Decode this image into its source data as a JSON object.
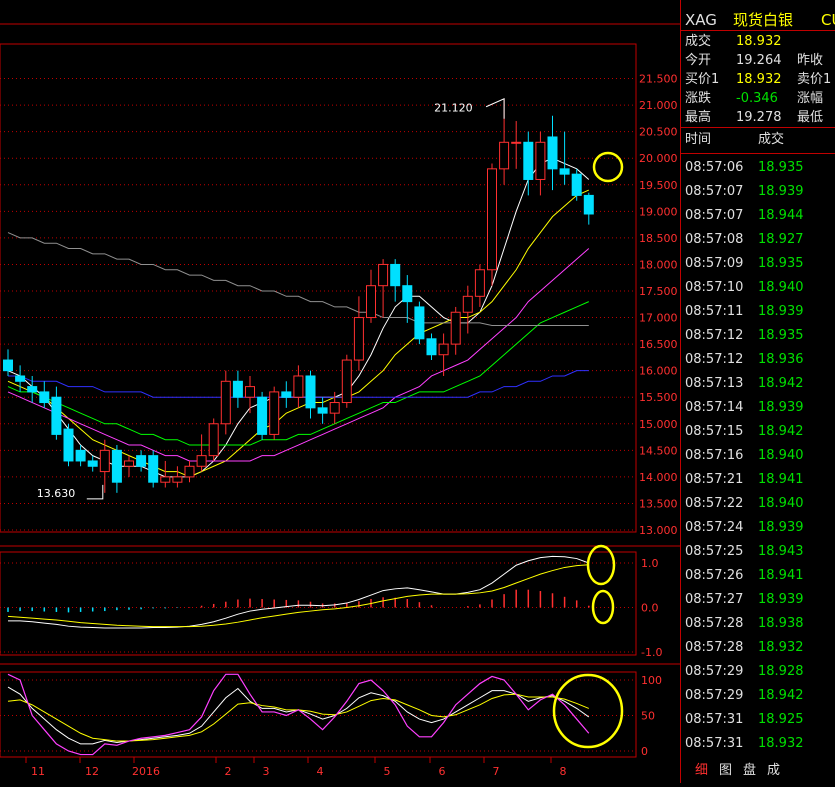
{
  "quote": {
    "symbol": "XAG",
    "name": "现货白银",
    "code_fragment": "CU",
    "rows": [
      {
        "label": "成交",
        "value": "18.932",
        "label2": "",
        "value2": ""
      },
      {
        "label": "今开",
        "value": "19.264",
        "label2": "昨收",
        "value2": ""
      },
      {
        "label": "买价1",
        "value": "18.932",
        "label2": "卖价1",
        "value2": ""
      },
      {
        "label": "涨跌",
        "value": "-0.346",
        "label2": "涨幅",
        "value2": ""
      },
      {
        "label": "最高",
        "value": "19.278",
        "label2": "最低",
        "value2": ""
      }
    ],
    "ticks_header": {
      "time": "时间",
      "price": "成交"
    },
    "ticks": [
      {
        "time": "08:57:06",
        "price": "18.935"
      },
      {
        "time": "08:57:07",
        "price": "18.939"
      },
      {
        "time": "08:57:07",
        "price": "18.944"
      },
      {
        "time": "08:57:08",
        "price": "18.927"
      },
      {
        "time": "08:57:09",
        "price": "18.935"
      },
      {
        "time": "08:57:10",
        "price": "18.940"
      },
      {
        "time": "08:57:11",
        "price": "18.939"
      },
      {
        "time": "08:57:12",
        "price": "18.935"
      },
      {
        "time": "08:57:12",
        "price": "18.936"
      },
      {
        "time": "08:57:13",
        "price": "18.942"
      },
      {
        "time": "08:57:14",
        "price": "18.939"
      },
      {
        "time": "08:57:15",
        "price": "18.942"
      },
      {
        "time": "08:57:16",
        "price": "18.940"
      },
      {
        "time": "08:57:21",
        "price": "18.941"
      },
      {
        "time": "08:57:22",
        "price": "18.940"
      },
      {
        "time": "08:57:24",
        "price": "18.939"
      },
      {
        "time": "08:57:25",
        "price": "18.943"
      },
      {
        "time": "08:57:26",
        "price": "18.941"
      },
      {
        "time": "08:57:27",
        "price": "18.939"
      },
      {
        "time": "08:57:28",
        "price": "18.938"
      },
      {
        "time": "08:57:28",
        "price": "18.932"
      },
      {
        "time": "08:57:29",
        "price": "18.928"
      },
      {
        "time": "08:57:29",
        "price": "18.942"
      },
      {
        "time": "08:57:31",
        "price": "18.925"
      },
      {
        "time": "08:57:31",
        "price": "18.932"
      }
    ],
    "tabs": [
      "细",
      "图",
      "盘",
      "成"
    ]
  },
  "colors": {
    "up": "#ff3030",
    "down": "#00e0ff",
    "ma5": "#ffffff",
    "ma10": "#ffff00",
    "ma20": "#ff40ff",
    "ma30": "#00ff00",
    "ma60": "#3030ff",
    "ma120": "#909090",
    "grid": "#c00000",
    "axis_text": "#ff3030",
    "annotation": "#ffff00"
  },
  "chart_data": [
    {
      "type": "candlestick",
      "ylim": [
        13.0,
        22.0
      ],
      "yticks": [
        "21.500",
        "21.000",
        "20.500",
        "20.000",
        "19.500",
        "19.000",
        "18.500",
        "18.000",
        "17.500",
        "17.000",
        "16.500",
        "16.000",
        "15.500",
        "15.000",
        "14.500",
        "14.000",
        "13.500",
        "13.000"
      ],
      "x_labels": [
        "11",
        "12",
        "2016",
        "2",
        "3",
        "4",
        "5",
        "6",
        "7",
        "8"
      ],
      "annotations": [
        "21.120",
        "13.630"
      ],
      "candles": [
        {
          "o": 16.2,
          "c": 16.0,
          "h": 16.4,
          "l": 15.9
        },
        {
          "o": 15.9,
          "c": 15.8,
          "h": 16.1,
          "l": 15.6
        },
        {
          "o": 15.7,
          "c": 15.6,
          "h": 15.9,
          "l": 15.4
        },
        {
          "o": 15.6,
          "c": 15.4,
          "h": 15.8,
          "l": 15.3
        },
        {
          "o": 15.5,
          "c": 14.8,
          "h": 15.7,
          "l": 14.7
        },
        {
          "o": 14.9,
          "c": 14.3,
          "h": 15.0,
          "l": 14.2
        },
        {
          "o": 14.5,
          "c": 14.3,
          "h": 14.6,
          "l": 14.2
        },
        {
          "o": 14.3,
          "c": 14.2,
          "h": 14.4,
          "l": 14.1
        },
        {
          "o": 14.1,
          "c": 14.5,
          "h": 14.7,
          "l": 13.7
        },
        {
          "o": 14.5,
          "c": 13.9,
          "h": 14.6,
          "l": 13.7
        },
        {
          "o": 14.2,
          "c": 14.3,
          "h": 14.4,
          "l": 14.0
        },
        {
          "o": 14.4,
          "c": 14.2,
          "h": 14.5,
          "l": 14.1
        },
        {
          "o": 14.4,
          "c": 13.9,
          "h": 14.5,
          "l": 13.8
        },
        {
          "o": 13.9,
          "c": 14.0,
          "h": 14.3,
          "l": 13.8
        },
        {
          "o": 13.9,
          "c": 14.0,
          "h": 14.2,
          "l": 13.8
        },
        {
          "o": 14.0,
          "c": 14.2,
          "h": 14.3,
          "l": 13.9
        },
        {
          "o": 14.2,
          "c": 14.4,
          "h": 14.8,
          "l": 14.1
        },
        {
          "o": 14.4,
          "c": 15.0,
          "h": 15.1,
          "l": 14.3
        },
        {
          "o": 15.0,
          "c": 15.8,
          "h": 16.0,
          "l": 14.8
        },
        {
          "o": 15.8,
          "c": 15.5,
          "h": 16.0,
          "l": 15.3
        },
        {
          "o": 15.5,
          "c": 15.7,
          "h": 15.9,
          "l": 15.2
        },
        {
          "o": 15.5,
          "c": 14.8,
          "h": 15.6,
          "l": 14.7
        },
        {
          "o": 14.8,
          "c": 15.6,
          "h": 15.7,
          "l": 14.7
        },
        {
          "o": 15.6,
          "c": 15.5,
          "h": 15.8,
          "l": 15.3
        },
        {
          "o": 15.5,
          "c": 15.9,
          "h": 16.1,
          "l": 15.3
        },
        {
          "o": 15.9,
          "c": 15.3,
          "h": 16.0,
          "l": 15.1
        },
        {
          "o": 15.3,
          "c": 15.2,
          "h": 15.5,
          "l": 15.0
        },
        {
          "o": 15.2,
          "c": 15.4,
          "h": 15.6,
          "l": 15.0
        },
        {
          "o": 15.4,
          "c": 16.2,
          "h": 16.3,
          "l": 15.3
        },
        {
          "o": 16.2,
          "c": 17.0,
          "h": 17.4,
          "l": 16.0
        },
        {
          "o": 17.0,
          "c": 17.6,
          "h": 17.9,
          "l": 16.9
        },
        {
          "o": 17.6,
          "c": 18.0,
          "h": 18.1,
          "l": 17.0
        },
        {
          "o": 18.0,
          "c": 17.6,
          "h": 18.1,
          "l": 17.3
        },
        {
          "o": 17.6,
          "c": 17.3,
          "h": 17.8,
          "l": 16.9
        },
        {
          "o": 17.2,
          "c": 16.6,
          "h": 17.3,
          "l": 16.5
        },
        {
          "o": 16.6,
          "c": 16.3,
          "h": 16.7,
          "l": 16.2
        },
        {
          "o": 16.3,
          "c": 16.5,
          "h": 16.7,
          "l": 15.9
        },
        {
          "o": 16.5,
          "c": 17.1,
          "h": 17.2,
          "l": 16.3
        },
        {
          "o": 17.1,
          "c": 17.4,
          "h": 17.6,
          "l": 16.7
        },
        {
          "o": 17.4,
          "c": 17.9,
          "h": 18.0,
          "l": 17.2
        },
        {
          "o": 17.9,
          "c": 19.8,
          "h": 19.9,
          "l": 17.6
        },
        {
          "o": 19.8,
          "c": 20.3,
          "h": 21.12,
          "l": 19.5
        },
        {
          "o": 20.3,
          "c": 20.3,
          "h": 20.7,
          "l": 19.8
        },
        {
          "o": 20.3,
          "c": 19.6,
          "h": 20.5,
          "l": 19.3
        },
        {
          "o": 19.6,
          "c": 20.3,
          "h": 20.5,
          "l": 19.3
        },
        {
          "o": 20.4,
          "c": 19.8,
          "h": 20.8,
          "l": 19.4
        },
        {
          "o": 19.8,
          "c": 19.7,
          "h": 20.5,
          "l": 19.5
        },
        {
          "o": 19.7,
          "c": 19.3,
          "h": 19.8,
          "l": 19.2
        },
        {
          "o": 19.3,
          "c": 18.95,
          "h": 19.35,
          "l": 18.75
        }
      ],
      "ma_lines": [
        {
          "name": "ma5",
          "values": [
            16.0,
            15.9,
            15.7,
            15.5,
            15.2,
            14.9,
            14.6,
            14.4,
            14.3,
            14.2,
            14.2,
            14.2,
            14.1,
            14.0,
            14.0,
            14.0,
            14.1,
            14.3,
            14.6,
            15.0,
            15.3,
            15.4,
            15.5,
            15.5,
            15.5,
            15.5,
            15.5,
            15.5,
            15.6,
            15.9,
            16.3,
            16.8,
            17.2,
            17.4,
            17.4,
            17.2,
            17.0,
            16.9,
            16.9,
            17.1,
            17.6,
            18.3,
            19.0,
            19.6,
            19.9,
            20.0,
            19.9,
            19.8,
            19.6
          ]
        },
        {
          "name": "ma10",
          "values": [
            15.8,
            15.7,
            15.6,
            15.5,
            15.3,
            15.1,
            14.9,
            14.7,
            14.6,
            14.5,
            14.4,
            14.3,
            14.2,
            14.1,
            14.1,
            14.0,
            14.1,
            14.2,
            14.3,
            14.5,
            14.7,
            14.9,
            15.0,
            15.2,
            15.3,
            15.4,
            15.4,
            15.5,
            15.5,
            15.6,
            15.8,
            16.0,
            16.3,
            16.5,
            16.7,
            16.8,
            16.9,
            17.0,
            17.0,
            17.1,
            17.3,
            17.6,
            17.9,
            18.3,
            18.6,
            18.9,
            19.1,
            19.3,
            19.4
          ]
        },
        {
          "name": "ma20",
          "values": [
            15.6,
            15.5,
            15.4,
            15.3,
            15.2,
            15.1,
            15.0,
            14.9,
            14.8,
            14.7,
            14.6,
            14.6,
            14.5,
            14.4,
            14.4,
            14.3,
            14.3,
            14.3,
            14.3,
            14.3,
            14.3,
            14.4,
            14.4,
            14.5,
            14.6,
            14.7,
            14.8,
            14.9,
            15.0,
            15.1,
            15.2,
            15.3,
            15.5,
            15.6,
            15.7,
            15.9,
            16.0,
            16.1,
            16.2,
            16.4,
            16.6,
            16.8,
            17.0,
            17.3,
            17.5,
            17.7,
            17.9,
            18.1,
            18.3
          ]
        },
        {
          "name": "ma30",
          "values": [
            15.7,
            15.6,
            15.6,
            15.5,
            15.4,
            15.3,
            15.2,
            15.1,
            15.0,
            15.0,
            14.9,
            14.8,
            14.8,
            14.7,
            14.7,
            14.6,
            14.6,
            14.6,
            14.6,
            14.6,
            14.6,
            14.7,
            14.7,
            14.7,
            14.8,
            14.8,
            14.9,
            15.0,
            15.1,
            15.2,
            15.3,
            15.4,
            15.4,
            15.5,
            15.6,
            15.6,
            15.6,
            15.7,
            15.8,
            15.9,
            16.1,
            16.3,
            16.5,
            16.7,
            16.9,
            17.0,
            17.1,
            17.2,
            17.3
          ]
        },
        {
          "name": "ma60",
          "values": [
            15.9,
            15.9,
            15.8,
            15.8,
            15.8,
            15.7,
            15.7,
            15.7,
            15.6,
            15.6,
            15.6,
            15.6,
            15.5,
            15.5,
            15.5,
            15.5,
            15.5,
            15.5,
            15.5,
            15.5,
            15.5,
            15.5,
            15.5,
            15.5,
            15.5,
            15.5,
            15.5,
            15.5,
            15.5,
            15.5,
            15.5,
            15.5,
            15.5,
            15.5,
            15.5,
            15.5,
            15.5,
            15.5,
            15.5,
            15.6,
            15.6,
            15.7,
            15.7,
            15.8,
            15.8,
            15.9,
            15.9,
            16.0,
            16.0
          ]
        },
        {
          "name": "ma120",
          "values": [
            18.6,
            18.5,
            18.5,
            18.4,
            18.4,
            18.3,
            18.3,
            18.2,
            18.2,
            18.1,
            18.1,
            18.0,
            18.0,
            17.9,
            17.9,
            17.8,
            17.8,
            17.7,
            17.7,
            17.6,
            17.6,
            17.5,
            17.5,
            17.4,
            17.4,
            17.3,
            17.3,
            17.2,
            17.2,
            17.1,
            17.1,
            17.0,
            17.0,
            17.0,
            16.9,
            16.9,
            16.9,
            16.9,
            16.9,
            16.9,
            16.85,
            16.85,
            16.85,
            16.85,
            16.85,
            16.85,
            16.85,
            16.85,
            16.85
          ]
        }
      ]
    },
    {
      "type": "macd",
      "ylim": [
        -1.0,
        1.0
      ],
      "yticks": [
        "1.0",
        "0.0",
        "-1.0"
      ],
      "dif": [
        -0.3,
        -0.3,
        -0.32,
        -0.35,
        -0.38,
        -0.42,
        -0.44,
        -0.45,
        -0.46,
        -0.46,
        -0.46,
        -0.46,
        -0.45,
        -0.45,
        -0.44,
        -0.42,
        -0.38,
        -0.32,
        -0.24,
        -0.15,
        -0.08,
        -0.04,
        -0.01,
        0.02,
        0.05,
        0.05,
        0.04,
        0.06,
        0.1,
        0.18,
        0.28,
        0.38,
        0.42,
        0.44,
        0.4,
        0.35,
        0.3,
        0.3,
        0.34,
        0.4,
        0.55,
        0.75,
        0.95,
        1.05,
        1.12,
        1.15,
        1.14,
        1.1,
        1.0
      ],
      "dea": [
        -0.2,
        -0.22,
        -0.24,
        -0.26,
        -0.28,
        -0.31,
        -0.34,
        -0.36,
        -0.38,
        -0.4,
        -0.41,
        -0.42,
        -0.43,
        -0.43,
        -0.43,
        -0.43,
        -0.42,
        -0.4,
        -0.37,
        -0.33,
        -0.28,
        -0.23,
        -0.19,
        -0.15,
        -0.11,
        -0.08,
        -0.05,
        -0.03,
        0.0,
        0.04,
        0.09,
        0.15,
        0.2,
        0.25,
        0.28,
        0.3,
        0.3,
        0.3,
        0.31,
        0.33,
        0.37,
        0.45,
        0.55,
        0.65,
        0.75,
        0.83,
        0.9,
        0.94,
        0.96
      ],
      "hist": [
        -0.1,
        -0.08,
        -0.08,
        -0.09,
        -0.1,
        -0.11,
        -0.1,
        -0.09,
        -0.08,
        -0.06,
        -0.05,
        -0.04,
        -0.02,
        -0.02,
        -0.01,
        0.01,
        0.04,
        0.08,
        0.13,
        0.18,
        0.2,
        0.19,
        0.18,
        0.17,
        0.16,
        0.13,
        0.09,
        0.09,
        0.1,
        0.14,
        0.19,
        0.23,
        0.22,
        0.19,
        0.12,
        0.05,
        0.0,
        0.0,
        0.03,
        0.07,
        0.18,
        0.3,
        0.4,
        0.4,
        0.37,
        0.32,
        0.24,
        0.16,
        0.04
      ]
    },
    {
      "type": "kdj",
      "ylim": [
        0,
        100
      ],
      "yticks": [
        "100",
        "50",
        "0"
      ],
      "k": [
        90,
        80,
        60,
        45,
        30,
        18,
        10,
        10,
        15,
        12,
        14,
        16,
        18,
        20,
        22,
        25,
        35,
        55,
        75,
        88,
        70,
        60,
        60,
        55,
        58,
        52,
        45,
        50,
        60,
        75,
        82,
        78,
        70,
        55,
        45,
        40,
        45,
        55,
        65,
        75,
        85,
        85,
        80,
        70,
        75,
        78,
        70,
        60,
        48
      ],
      "d": [
        70,
        72,
        65,
        55,
        45,
        35,
        25,
        18,
        16,
        14,
        14,
        15,
        16,
        18,
        20,
        22,
        27,
        38,
        52,
        66,
        68,
        64,
        62,
        58,
        58,
        56,
        52,
        51,
        55,
        63,
        71,
        74,
        72,
        65,
        58,
        50,
        48,
        51,
        58,
        65,
        74,
        79,
        80,
        76,
        76,
        76,
        73,
        67,
        60
      ],
      "j": [
        110,
        100,
        50,
        30,
        10,
        0,
        -5,
        -5,
        10,
        8,
        14,
        18,
        20,
        22,
        26,
        30,
        48,
        85,
        110,
        120,
        80,
        55,
        55,
        50,
        58,
        45,
        30,
        48,
        70,
        95,
        100,
        85,
        65,
        35,
        20,
        20,
        40,
        65,
        80,
        95,
        105,
        100,
        80,
        58,
        72,
        80,
        65,
        45,
        25
      ]
    }
  ]
}
